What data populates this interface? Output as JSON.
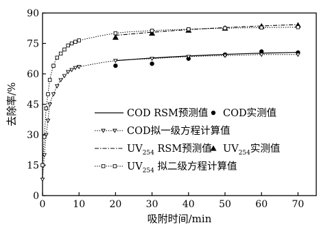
{
  "chart_data": {
    "type": "line",
    "xlabel": "吸附时间/min",
    "ylabel": "去除率/%",
    "xlim": [
      0,
      75
    ],
    "ylim": [
      0,
      90
    ],
    "x_ticks": [
      0,
      10,
      20,
      30,
      40,
      50,
      60,
      70
    ],
    "y_ticks": [
      0,
      15,
      30,
      45,
      60,
      75,
      90
    ],
    "grid": false,
    "legend_position": "bottom-right",
    "legend": [
      {
        "key": "cod_rsm",
        "marker": "none",
        "line": "solid",
        "text": "COD RSM预测值"
      },
      {
        "key": "cod_obs",
        "marker": "circle",
        "line": "none",
        "text": "COD实测值"
      },
      {
        "key": "cod_pso",
        "marker": "triangle-down-open",
        "line": "dotted",
        "text": "COD拟一级方程计算值"
      },
      {
        "key": "uv_rsm",
        "marker": "none",
        "line": "dashdot",
        "text_main": "UV",
        "text_sub": "254",
        "text_after": " RSM预测值"
      },
      {
        "key": "uv_obs",
        "marker": "triangle-filled",
        "line": "none",
        "text_main": "UV",
        "text_sub": "254",
        "text_after": "实测值"
      },
      {
        "key": "uv_pso2",
        "marker": "square-open",
        "line": "dotted",
        "text_main": "UV",
        "text_sub": "254",
        "text_after": " 拟二级方程计算值"
      }
    ],
    "series": [
      {
        "key": "cod_obs",
        "style": "filled-circle",
        "x": [
          20,
          30,
          40,
          50,
          60,
          70
        ],
        "y": [
          64,
          65,
          67.5,
          69.5,
          71,
          70.5
        ]
      },
      {
        "key": "cod_rsm",
        "style": "solid-line",
        "x": [
          20,
          30,
          40,
          50,
          60,
          70
        ],
        "y": [
          66.5,
          67.8,
          68.8,
          69.6,
          70.2,
          70.6
        ]
      },
      {
        "key": "cod_pso",
        "style": "dotted-line-open-down-triangles",
        "x": [
          0,
          0.5,
          1,
          1.5,
          2,
          3,
          4,
          5,
          6,
          7,
          8,
          9,
          10,
          20,
          30,
          40,
          50,
          60,
          70
        ],
        "y": [
          8,
          20,
          30,
          37,
          45,
          50,
          54,
          57,
          59,
          61,
          62,
          63,
          63.5,
          66.5,
          67.5,
          68.5,
          69,
          69.5,
          69.5
        ]
      },
      {
        "key": "uv_obs",
        "style": "filled-triangle",
        "x": [
          20,
          30,
          40,
          50,
          60,
          70
        ],
        "y": [
          78,
          80,
          81.5,
          82.5,
          83.5,
          84
        ]
      },
      {
        "key": "uv_rsm",
        "style": "dashdot-line",
        "x": [
          20,
          30,
          40,
          50,
          60,
          70
        ],
        "y": [
          79,
          80.5,
          81.8,
          82.8,
          83.6,
          84.3
        ]
      },
      {
        "key": "uv_pso2",
        "style": "dotted-line-open-squares",
        "x": [
          0,
          0.5,
          1,
          1.5,
          2,
          3,
          4,
          5,
          6,
          7,
          8,
          9,
          10,
          20,
          30,
          40,
          50,
          60,
          70
        ],
        "y": [
          15,
          29,
          43,
          50,
          57,
          64,
          68,
          70,
          72,
          74,
          75,
          75.8,
          76.5,
          80,
          81.3,
          82,
          82.5,
          82.8,
          83
        ]
      }
    ]
  }
}
